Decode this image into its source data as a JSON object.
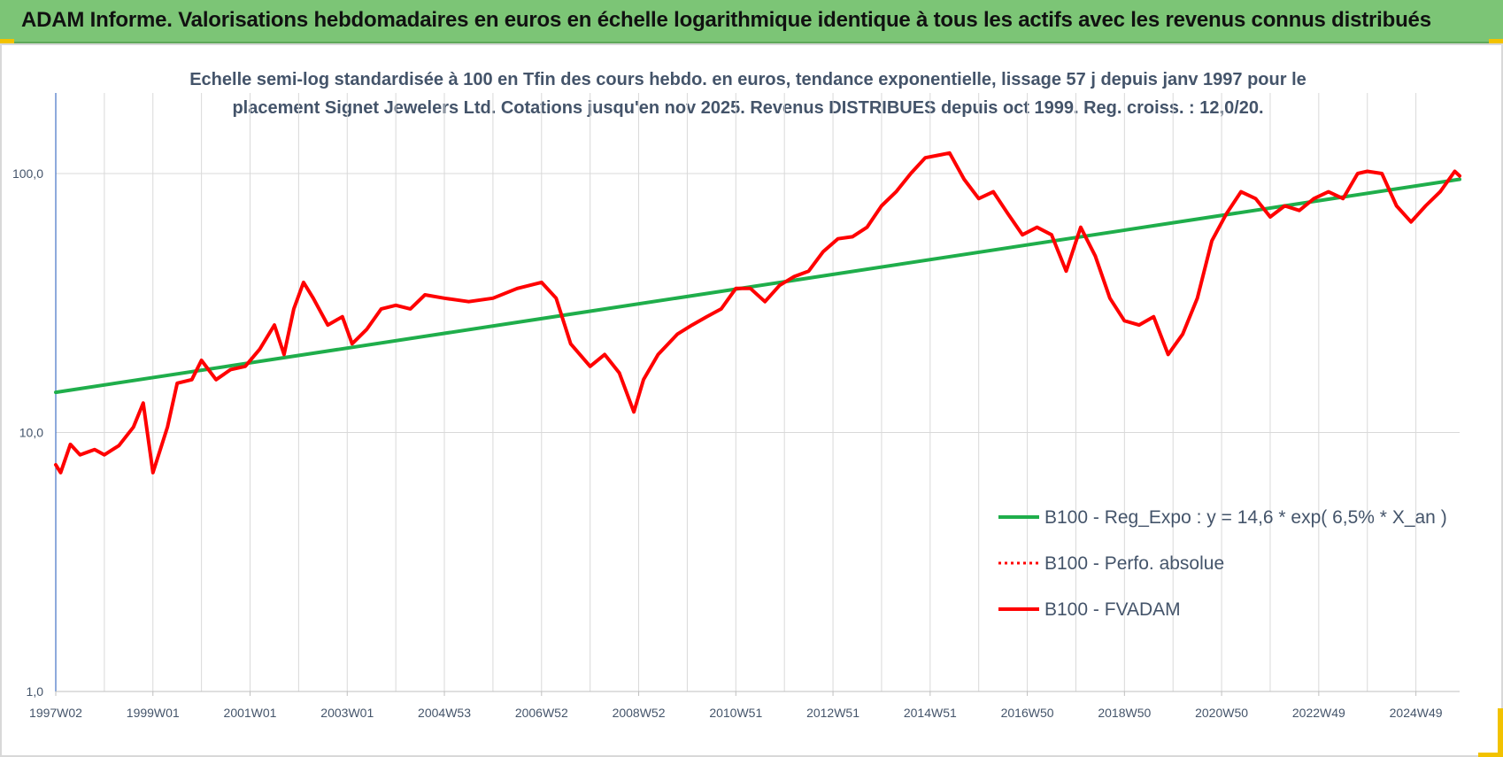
{
  "banner": {
    "title": "ADAM Informe. Valorisations hebdomadaires en euros en échelle logarithmique identique à tous les actifs avec les revenus connus distribués"
  },
  "colors": {
    "banner": "#7cc576",
    "regression": "#1fae4b",
    "performance": "#ff0000",
    "grid": "#d9d9d9",
    "text": "#44546a"
  },
  "chart_data": {
    "type": "line",
    "title_lines": [
      "Echelle semi-log standardisée à 100 en Tfin des cours hebdo. en euros, tendance exponentielle, lissage 57 j depuis janv 1997 pour le",
      "placement Signet Jewelers Ltd. Cotations jusqu'en nov 2025. Revenus DISTRIBUES depuis oct 1999. Reg. croiss. : 12,0/20."
    ],
    "y_scale": "log",
    "ylim": [
      1,
      200
    ],
    "y_ticks": [
      {
        "value": 1,
        "label": "1,0"
      },
      {
        "value": 10,
        "label": "10,0"
      },
      {
        "value": 100,
        "label": "100,0"
      }
    ],
    "xlim": [
      1997.0,
      2025.9
    ],
    "x_ticks": [
      {
        "x": 1997.0,
        "label": "1997W02"
      },
      {
        "x": 1999.0,
        "label": "1999W01"
      },
      {
        "x": 2001.0,
        "label": "2001W01"
      },
      {
        "x": 2003.0,
        "label": "2003W01"
      },
      {
        "x": 2005.0,
        "label": "2004W53"
      },
      {
        "x": 2007.0,
        "label": "2006W52"
      },
      {
        "x": 2009.0,
        "label": "2008W52"
      },
      {
        "x": 2011.0,
        "label": "2010W51"
      },
      {
        "x": 2013.0,
        "label": "2012W51"
      },
      {
        "x": 2015.0,
        "label": "2014W51"
      },
      {
        "x": 2017.0,
        "label": "2016W50"
      },
      {
        "x": 2019.0,
        "label": "2018W50"
      },
      {
        "x": 2021.0,
        "label": "2020W50"
      },
      {
        "x": 2023.0,
        "label": "2022W49"
      },
      {
        "x": 2025.0,
        "label": "2024W49"
      }
    ],
    "grid": true,
    "legend_position": "bottom-right",
    "series": [
      {
        "name": "B100 - Reg_Expo : y = 14,6 * exp( 6,5% *  X_an )",
        "style": "solid-green",
        "x": [
          1997.0,
          2025.9
        ],
        "y": [
          14.3,
          95
        ]
      },
      {
        "name": "B100 - Perfo. absolue",
        "style": "dotted-red",
        "x": [],
        "y": []
      },
      {
        "name": "B100 - FVADAM",
        "style": "solid-red",
        "x": [
          1997.0,
          1997.1,
          1997.3,
          1997.5,
          1997.8,
          1998.0,
          1998.3,
          1998.6,
          1998.8,
          1999.0,
          1999.3,
          1999.5,
          1999.8,
          2000.0,
          2000.3,
          2000.6,
          2000.9,
          2001.2,
          2001.5,
          2001.7,
          2001.9,
          2002.1,
          2002.3,
          2002.6,
          2002.9,
          2003.1,
          2003.4,
          2003.7,
          2004.0,
          2004.3,
          2004.6,
          2005.0,
          2005.5,
          2006.0,
          2006.5,
          2007.0,
          2007.3,
          2007.6,
          2008.0,
          2008.3,
          2008.6,
          2008.9,
          2009.1,
          2009.4,
          2009.8,
          2010.1,
          2010.4,
          2010.7,
          2011.0,
          2011.3,
          2011.6,
          2011.9,
          2012.2,
          2012.5,
          2012.8,
          2013.1,
          2013.4,
          2013.7,
          2014.0,
          2014.3,
          2014.6,
          2014.9,
          2015.2,
          2015.4,
          2015.7,
          2016.0,
          2016.3,
          2016.6,
          2016.9,
          2017.2,
          2017.5,
          2017.8,
          2018.1,
          2018.4,
          2018.7,
          2019.0,
          2019.3,
          2019.6,
          2019.9,
          2020.2,
          2020.5,
          2020.8,
          2021.1,
          2021.4,
          2021.7,
          2022.0,
          2022.3,
          2022.6,
          2022.9,
          2023.2,
          2023.5,
          2023.8,
          2024.0,
          2024.3,
          2024.6,
          2024.9,
          2025.2,
          2025.5,
          2025.8,
          2025.9
        ],
        "y": [
          7.5,
          7.0,
          9.0,
          8.2,
          8.6,
          8.2,
          8.9,
          10.5,
          13.0,
          7.0,
          10.5,
          15.5,
          16.0,
          19.0,
          16.0,
          17.5,
          18.0,
          21.0,
          26.0,
          20.0,
          30.0,
          38.0,
          33.0,
          26.0,
          28.0,
          22.0,
          25.0,
          30.0,
          31.0,
          30.0,
          34.0,
          33.0,
          32.0,
          33.0,
          36.0,
          38.0,
          33.0,
          22.0,
          18.0,
          20.0,
          17.0,
          12.0,
          16.0,
          20.0,
          24.0,
          26.0,
          28.0,
          30.0,
          36.0,
          36.0,
          32.0,
          37.0,
          40.0,
          42.0,
          50.0,
          56.0,
          57.0,
          62.0,
          75.0,
          85.0,
          100.0,
          115.0,
          118.0,
          120.0,
          95.0,
          80.0,
          85.0,
          70.0,
          58.0,
          62.0,
          58.0,
          42.0,
          62.0,
          48.0,
          33.0,
          27.0,
          26.0,
          28.0,
          20.0,
          24.0,
          33.0,
          55.0,
          70.0,
          85.0,
          80.0,
          68.0,
          75.0,
          72.0,
          80.0,
          85.0,
          80.0,
          100.0,
          102.0,
          100.0,
          75.0,
          65.0,
          75.0,
          85.0,
          102.0,
          98.0
        ]
      }
    ]
  }
}
